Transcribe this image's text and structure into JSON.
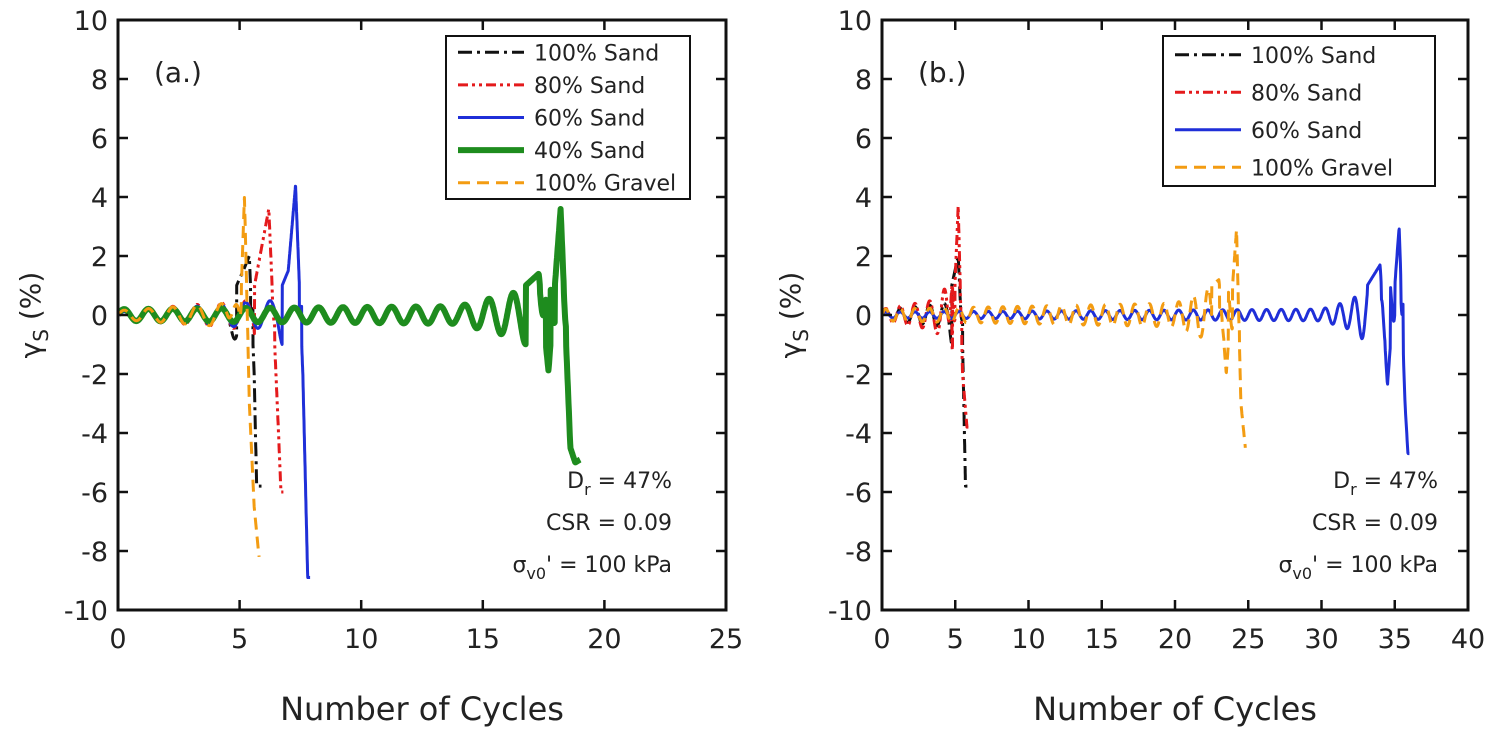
{
  "chart_data": [
    {
      "type": "line",
      "panel_label": "(a.)",
      "xlabel": "Number of Cycles",
      "ylabel": "γS (%)",
      "xlim": [
        0,
        25
      ],
      "ylim": [
        -10,
        10
      ],
      "xticks": [
        0,
        5,
        10,
        15,
        20,
        25
      ],
      "yticks": [
        -10,
        -8,
        -6,
        -4,
        -2,
        0,
        2,
        4,
        6,
        8,
        10
      ],
      "legend_position": "top-right",
      "annotations": [
        "Dr = 47%",
        "CSR = 0.09",
        "σv0' = 100 kPa"
      ],
      "series": [
        {
          "name": "100% Sand",
          "color": "#111111",
          "dash": "dash-dot",
          "envelope": [
            [
              0,
              0.15
            ],
            [
              4.5,
              0.3
            ],
            [
              5.2,
              1.6
            ],
            [
              5.4,
              2.0
            ],
            [
              5.6,
              -2.0
            ],
            [
              5.7,
              -5.8
            ],
            [
              5.9,
              -5.8
            ]
          ]
        },
        {
          "name": "80% Sand",
          "color": "#e41a1c",
          "dash": "dash-dot-dot",
          "envelope": [
            [
              0,
              0.15
            ],
            [
              5.5,
              0.5
            ],
            [
              6.2,
              3.6
            ],
            [
              6.6,
              -4.0
            ],
            [
              6.7,
              -6.0
            ],
            [
              6.8,
              -6.0
            ]
          ]
        },
        {
          "name": "60% Sand",
          "color": "#1f2fd8",
          "dash": "solid",
          "envelope": [
            [
              0,
              0.1
            ],
            [
              6.5,
              0.5
            ],
            [
              7.0,
              1.5
            ],
            [
              7.3,
              4.4
            ],
            [
              7.6,
              -2.0
            ],
            [
              7.8,
              -8.9
            ],
            [
              7.9,
              -8.9
            ]
          ]
        },
        {
          "name": "40% Sand",
          "color": "#1e8c1e",
          "dash": "thick-solid",
          "envelope": [
            [
              0,
              0.2
            ],
            [
              14.0,
              0.3
            ],
            [
              16.5,
              0.8
            ],
            [
              17.3,
              1.4
            ],
            [
              17.7,
              -1.9
            ],
            [
              18.2,
              3.6
            ],
            [
              18.6,
              -4.5
            ],
            [
              18.8,
              -5.0
            ],
            [
              19.0,
              -4.9
            ]
          ]
        },
        {
          "name": "100% Gravel",
          "color": "#f39c12",
          "dash": "dashed",
          "envelope": [
            [
              0,
              0.15
            ],
            [
              4.5,
              0.4
            ],
            [
              5.0,
              -0.8
            ],
            [
              5.2,
              4.0
            ],
            [
              5.4,
              -3.0
            ],
            [
              5.6,
              -6.5
            ],
            [
              5.8,
              -8.2
            ]
          ]
        }
      ]
    },
    {
      "type": "line",
      "panel_label": "(b.)",
      "xlabel": "Number of Cycles",
      "ylabel": "γS (%)",
      "xlim": [
        0,
        40
      ],
      "ylim": [
        -10,
        10
      ],
      "xticks": [
        0,
        5,
        10,
        15,
        20,
        25,
        30,
        35,
        40
      ],
      "yticks": [
        -10,
        -8,
        -6,
        -4,
        -2,
        0,
        2,
        4,
        6,
        8,
        10
      ],
      "legend_position": "top-right",
      "annotations": [
        "Dr = 47%",
        "CSR = 0.09",
        "σv0' = 100 kPa"
      ],
      "series": [
        {
          "name": "100% Sand",
          "color": "#111111",
          "dash": "dash-dot",
          "envelope": [
            [
              0,
              0.15
            ],
            [
              4.5,
              0.4
            ],
            [
              5.2,
              2.0
            ],
            [
              5.5,
              -1.0
            ],
            [
              5.7,
              -5.8
            ],
            [
              5.9,
              -5.8
            ]
          ]
        },
        {
          "name": "80% Sand",
          "color": "#e41a1c",
          "dash": "dash-dot-dot",
          "envelope": [
            [
              0,
              0.2
            ],
            [
              3.5,
              0.5
            ],
            [
              4.5,
              1.0
            ],
            [
              4.8,
              -1.2
            ],
            [
              5.2,
              3.7
            ],
            [
              5.5,
              -2.0
            ],
            [
              5.8,
              -3.8
            ],
            [
              5.9,
              -3.8
            ]
          ]
        },
        {
          "name": "60% Sand",
          "color": "#1f2fd8",
          "dash": "solid",
          "envelope": [
            [
              0,
              0.1
            ],
            [
              30.0,
              0.2
            ],
            [
              32.0,
              0.5
            ],
            [
              33.0,
              0.9
            ],
            [
              34.0,
              1.7
            ],
            [
              34.5,
              -2.4
            ],
            [
              35.3,
              3.0
            ],
            [
              35.7,
              -3.0
            ],
            [
              35.9,
              -4.7
            ],
            [
              36.0,
              -4.7
            ]
          ]
        },
        {
          "name": "100% Gravel",
          "color": "#f39c12",
          "dash": "dashed",
          "envelope": [
            [
              0,
              0.2
            ],
            [
              20.0,
              0.4
            ],
            [
              22.0,
              0.8
            ],
            [
              23.0,
              1.2
            ],
            [
              23.5,
              -2.0
            ],
            [
              24.2,
              2.9
            ],
            [
              24.5,
              -3.0
            ],
            [
              24.8,
              -4.5
            ]
          ]
        }
      ]
    }
  ]
}
